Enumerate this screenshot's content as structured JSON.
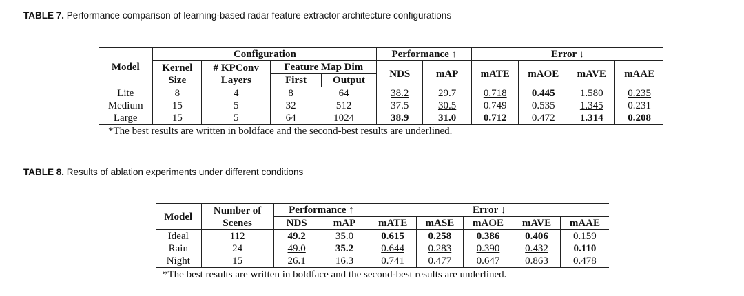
{
  "table7": {
    "caption_label": "TABLE 7.",
    "caption_text": "Performance comparison of learning-based radar feature extractor architecture configurations",
    "h": {
      "model": "Model",
      "configuration": "Configuration",
      "performance": "Performance ↑",
      "error": "Error ↓",
      "kernel1": "Kernel",
      "kernel2": "Size",
      "kpconv1": "# KPConv",
      "kpconv2": "Layers",
      "fmd": "Feature Map Dim",
      "first": "First",
      "output": "Output",
      "nds": "NDS",
      "map": "mAP",
      "mate": "mATE",
      "maoe": "mAOE",
      "mave": "mAVE",
      "maae": "mAAE"
    },
    "rows": [
      {
        "model": "Lite",
        "kernel": "8",
        "layers": "4",
        "first": "8",
        "output": "64",
        "nds": "38.2",
        "map": "29.7",
        "mate": "0.718",
        "maoe": "0.445",
        "mave": "1.580",
        "maae": "0.235"
      },
      {
        "model": "Medium",
        "kernel": "15",
        "layers": "5",
        "first": "32",
        "output": "512",
        "nds": "37.5",
        "map": "30.5",
        "mate": "0.749",
        "maoe": "0.535",
        "mave": "1.345",
        "maae": "0.231"
      },
      {
        "model": "Large",
        "kernel": "15",
        "layers": "5",
        "first": "64",
        "output": "1024",
        "nds": "38.9",
        "map": "31.0",
        "mate": "0.712",
        "maoe": "0.472",
        "mave": "1.314",
        "maae": "0.208"
      }
    ],
    "note": "*The best results are written in boldface and the second-best results are underlined."
  },
  "table8": {
    "caption_label": "TABLE 8.",
    "caption_text": "Results of ablation experiments under different conditions",
    "h": {
      "model": "Model",
      "scenes1": "Number of",
      "scenes2": "Scenes",
      "performance": "Performance ↑",
      "error": "Error ↓",
      "nds": "NDS",
      "map": "mAP",
      "mate": "mATE",
      "mase": "mASE",
      "maoe": "mAOE",
      "mave": "mAVE",
      "maae": "mAAE"
    },
    "rows": [
      {
        "model": "Ideal",
        "scenes": "112",
        "nds": "49.2",
        "map": "35.0",
        "mate": "0.615",
        "mase": "0.258",
        "maoe": "0.386",
        "mave": "0.406",
        "maae": "0.159"
      },
      {
        "model": "Rain",
        "scenes": "24",
        "nds": "49.0",
        "map": "35.2",
        "mate": "0.644",
        "mase": "0.283",
        "maoe": "0.390",
        "mave": "0.432",
        "maae": "0.110"
      },
      {
        "model": "Night",
        "scenes": "15",
        "nds": "26.1",
        "map": "16.3",
        "mate": "0.741",
        "mase": "0.477",
        "maoe": "0.647",
        "mave": "0.863",
        "maae": "0.478"
      }
    ],
    "note": "*The best results are written in boldface and the second-best results are underlined."
  }
}
